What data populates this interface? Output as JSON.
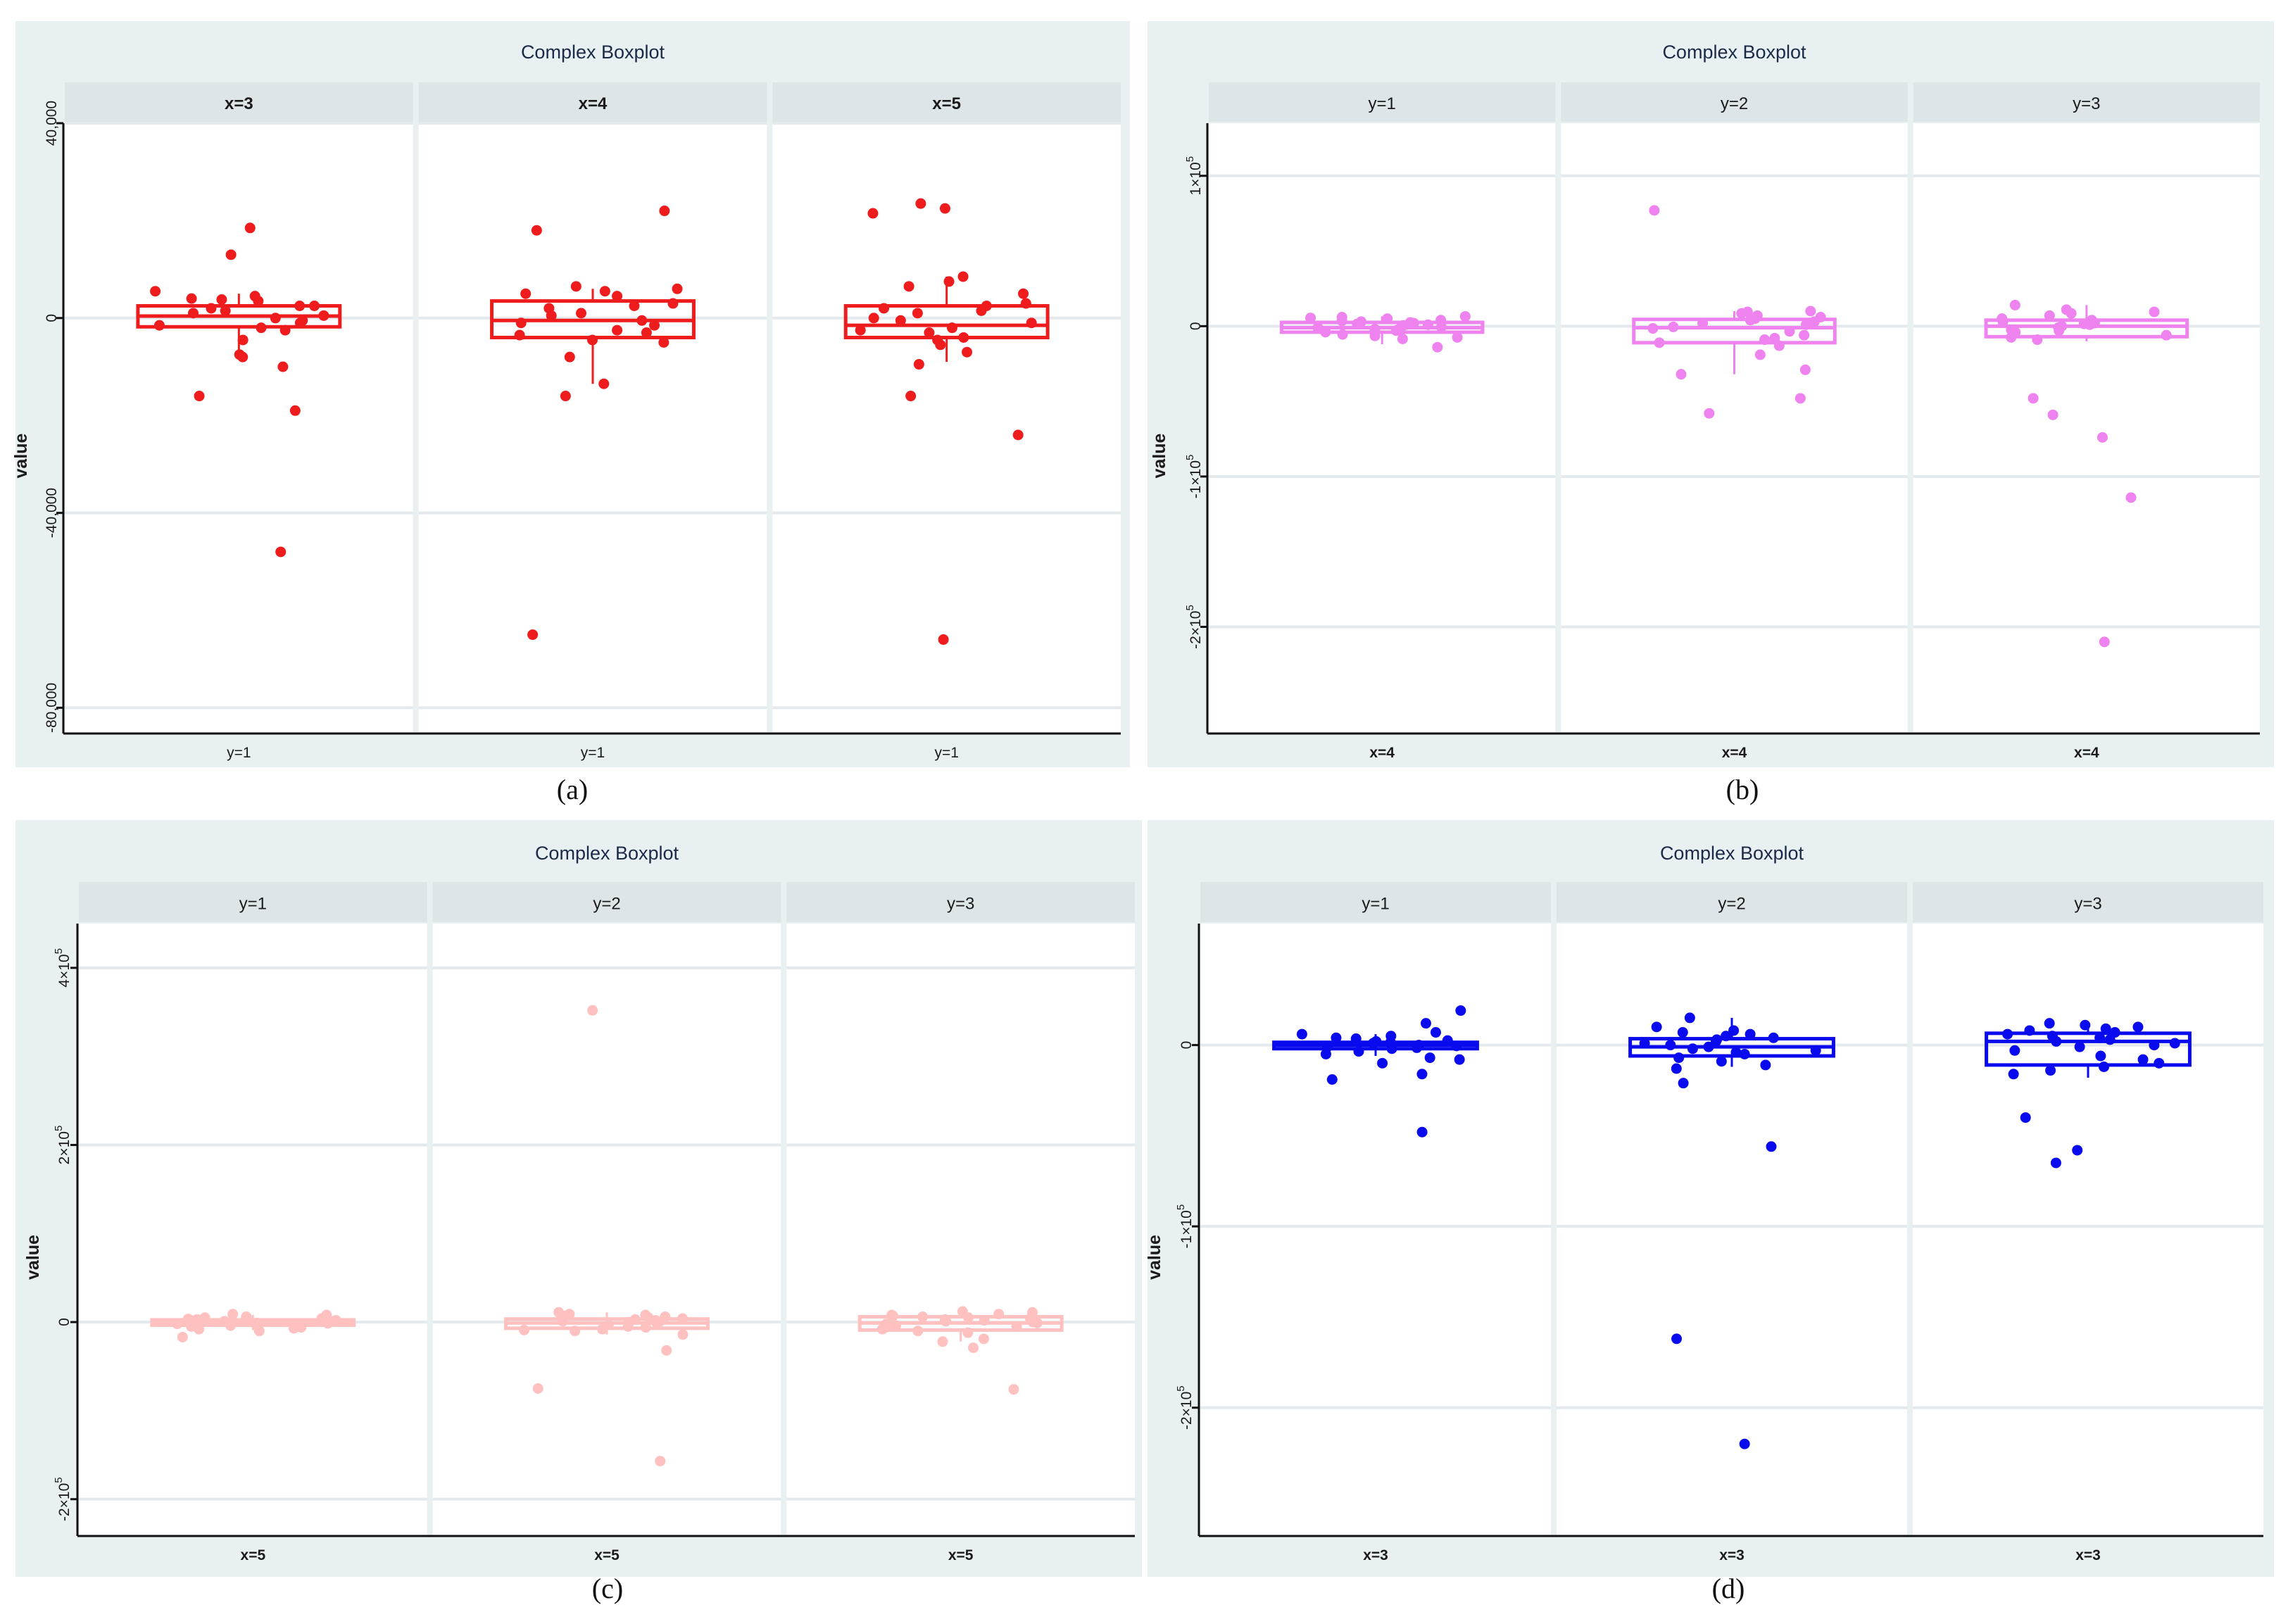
{
  "chart_data": [
    {
      "type": "box",
      "caption": "(a)",
      "title": "Complex Boxplot",
      "ylabel": "value",
      "color": "#ee1c1c",
      "strip_bold": true,
      "bottom_bold": false,
      "ylim": [
        -85000,
        40000
      ],
      "yticks": [
        {
          "value": 40000,
          "label": "40,000",
          "sup": ""
        },
        {
          "value": 0,
          "label": "0",
          "sup": ""
        },
        {
          "value": -40000,
          "label": "-40,000",
          "sup": ""
        },
        {
          "value": -80000,
          "label": "-80,000",
          "sup": ""
        }
      ],
      "panels": [
        {
          "strip": "x=3",
          "bottom": "y=1",
          "box": {
            "q1": -1800,
            "median": 400,
            "q3": 2500,
            "whisker_low": -8500,
            "whisker_high": 5000
          },
          "points": [
            -48000,
            18500,
            13000,
            -16000,
            -19000,
            -10000,
            -7500,
            -4500,
            -8000,
            5500,
            4500,
            3500,
            3800,
            2500,
            2000,
            1500,
            1000,
            500,
            0,
            -500,
            -1000,
            -1500,
            -2000,
            2500,
            4000,
            -2500
          ]
        },
        {
          "strip": "x=4",
          "bottom": "y=1",
          "box": {
            "q1": -4000,
            "median": -500,
            "q3": 3500,
            "whisker_low": -13500,
            "whisker_high": 6000
          },
          "points": [
            -65000,
            22000,
            18000,
            -16000,
            -13500,
            -8000,
            6500,
            5500,
            5000,
            4500,
            3000,
            2000,
            500,
            -500,
            -1500,
            -2500,
            -3500,
            -4500,
            -3000,
            2500,
            -1000,
            1000,
            6000,
            -5000
          ]
        },
        {
          "strip": "x=5",
          "bottom": "y=1",
          "box": {
            "q1": -4000,
            "median": -1500,
            "q3": 2500,
            "whisker_low": -9000,
            "whisker_high": 8500
          },
          "points": [
            -66000,
            23500,
            22500,
            21500,
            -24000,
            -16000,
            -9500,
            -7000,
            8500,
            7500,
            6500,
            5000,
            3000,
            2000,
            1500,
            0,
            -1000,
            -2000,
            -3000,
            -4000,
            -4500,
            -5500,
            -2500,
            2500,
            1000,
            -500
          ]
        }
      ]
    },
    {
      "type": "box",
      "caption": "(b)",
      "title": "Complex Boxplot",
      "ylabel": "value",
      "color": "#ee82ee",
      "strip_bold": false,
      "bottom_bold": true,
      "ylim": [
        -270000,
        135000
      ],
      "yticks": [
        {
          "value": 100000,
          "label": "1×10",
          "sup": "5"
        },
        {
          "value": 0,
          "label": "0",
          "sup": ""
        },
        {
          "value": -100000,
          "label": "-1×10",
          "sup": "5"
        },
        {
          "value": -200000,
          "label": "-2×10",
          "sup": "5"
        }
      ],
      "panels": [
        {
          "strip": "y=1",
          "bottom": "x=4",
          "box": {
            "q1": -4000,
            "median": -1000,
            "q3": 2500,
            "whisker_low": -12000,
            "whisker_high": 6500
          },
          "points": [
            -14000,
            6500,
            6000,
            5500,
            5000,
            3000,
            2000,
            1000,
            500,
            0,
            -1000,
            -2000,
            -3000,
            -4000,
            -5500,
            -7500,
            -8500,
            2500,
            -500,
            1500,
            4000,
            -6500,
            3500,
            -2500
          ]
        },
        {
          "strip": "y=2",
          "bottom": "x=4",
          "box": {
            "q1": -11000,
            "median": -1000,
            "q3": 4500,
            "whisker_low": -32000,
            "whisker_high": 10000
          },
          "points": [
            77000,
            -58000,
            -48000,
            -32000,
            -29000,
            -19000,
            -13000,
            -11000,
            -9000,
            10000,
            9500,
            8500,
            7000,
            5000,
            3000,
            1000,
            -1500,
            -3500,
            -6000,
            2000,
            -500,
            6000,
            4000,
            -8000
          ]
        },
        {
          "strip": "y=3",
          "bottom": "x=4",
          "box": {
            "q1": -7000,
            "median": 0,
            "q3": 4000,
            "whisker_low": -10000,
            "whisker_high": 14000
          },
          "points": [
            -210000,
            -114000,
            -74000,
            -59000,
            -48000,
            14000,
            11000,
            9500,
            8500,
            7000,
            5000,
            3000,
            2000,
            1000,
            0,
            -1000,
            -2500,
            -4000,
            -6000,
            -7500,
            -9000,
            4000,
            1500,
            -3000
          ]
        }
      ]
    },
    {
      "type": "box",
      "caption": "(c)",
      "title": "Complex Boxplot",
      "ylabel": "value",
      "color": "#ffc0c0",
      "strip_bold": false,
      "bottom_bold": true,
      "ylim": [
        -240000,
        450000
      ],
      "yticks": [
        {
          "value": 400000,
          "label": "4×10",
          "sup": "5"
        },
        {
          "value": 200000,
          "label": "2×10",
          "sup": "5"
        },
        {
          "value": 0,
          "label": "0",
          "sup": ""
        },
        {
          "value": -200000,
          "label": "-2×10",
          "sup": "5"
        }
      ],
      "panels": [
        {
          "strip": "y=1",
          "bottom": "x=5",
          "box": {
            "q1": -3500,
            "median": -500,
            "q3": 2500,
            "whisker_low": -9000,
            "whisker_high": 8000
          },
          "points": [
            -17000,
            9000,
            8000,
            6000,
            5000,
            3000,
            2000,
            1000,
            0,
            -1000,
            -2000,
            -3000,
            -4000,
            -5000,
            -6000,
            -8000,
            -10000,
            4000,
            -1500,
            2500,
            1500,
            -7000,
            3500,
            -500
          ]
        },
        {
          "strip": "y=2",
          "bottom": "x=5",
          "box": {
            "q1": -7000,
            "median": -1000,
            "q3": 3500,
            "whisker_low": -14000,
            "whisker_high": 11000
          },
          "points": [
            352000,
            -157000,
            -75000,
            -32000,
            -14000,
            -10000,
            -8000,
            11000,
            9000,
            7000,
            5000,
            3000,
            1000,
            -1000,
            -3000,
            -5000,
            -6000,
            -9000,
            2000,
            0,
            4000,
            6000,
            -2000,
            8000
          ]
        },
        {
          "strip": "y=3",
          "bottom": "x=5",
          "box": {
            "q1": -9000,
            "median": -1000,
            "q3": 6000,
            "whisker_low": -22000,
            "whisker_high": 12000
          },
          "points": [
            -76000,
            -29000,
            -22000,
            -19000,
            12000,
            11000,
            9000,
            8000,
            6000,
            4000,
            2000,
            0,
            -2000,
            -4000,
            -6000,
            -8000,
            -10000,
            -12000,
            5000,
            1000,
            3000,
            -1000,
            7000,
            -5000
          ]
        }
      ]
    },
    {
      "type": "box",
      "caption": "(d)",
      "title": "Complex Boxplot",
      "ylabel": "value",
      "color": "#0a0aee",
      "strip_bold": false,
      "bottom_bold": true,
      "ylim": [
        -270000,
        67000
      ],
      "yticks": [
        {
          "value": 0,
          "label": "0",
          "sup": ""
        },
        {
          "value": -100000,
          "label": "-1×10",
          "sup": "5"
        },
        {
          "value": -200000,
          "label": "-2×10",
          "sup": "5"
        }
      ],
      "panels": [
        {
          "strip": "y=1",
          "bottom": "x=3",
          "box": {
            "q1": -2000,
            "median": 0,
            "q3": 1500,
            "whisker_low": -6000,
            "whisker_high": 6000
          },
          "points": [
            -48000,
            19000,
            12000,
            7000,
            5000,
            3500,
            2000,
            1000,
            0,
            -1000,
            -2000,
            -3500,
            -5000,
            -7000,
            -10000,
            -16000,
            -19000,
            4000,
            1500,
            -500,
            2500,
            -1500,
            6000,
            -8000
          ]
        },
        {
          "strip": "y=2",
          "bottom": "x=3",
          "box": {
            "q1": -6000,
            "median": -1000,
            "q3": 3500,
            "whisker_low": -12000,
            "whisker_high": 15000
          },
          "points": [
            -220000,
            -162000,
            -56000,
            -21000,
            -13000,
            15000,
            10000,
            8000,
            7000,
            5000,
            3000,
            1000,
            -1000,
            -3000,
            -5000,
            -7000,
            -9000,
            -11000,
            2000,
            0,
            4000,
            6000,
            -2000,
            -4000
          ]
        },
        {
          "strip": "y=3",
          "bottom": "x=3",
          "box": {
            "q1": -11000,
            "median": 2000,
            "q3": 6500,
            "whisker_low": -18000,
            "whisker_high": 12000
          },
          "points": [
            -65000,
            -58000,
            -40000,
            -16000,
            -14000,
            12000,
            11000,
            10000,
            8000,
            6000,
            4000,
            3000,
            1000,
            -1000,
            -3000,
            -6000,
            -8000,
            -10000,
            -12000,
            5000,
            2000,
            7000,
            0,
            9000
          ]
        }
      ]
    }
  ]
}
